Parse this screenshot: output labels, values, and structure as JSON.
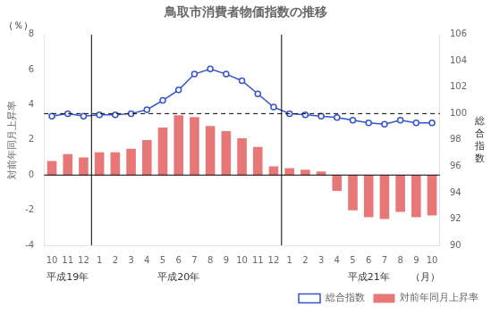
{
  "chart_data": {
    "type": "bar",
    "title": "鳥取市消費者物価指数の推移",
    "categories": [
      "10",
      "11",
      "12",
      "1",
      "2",
      "3",
      "4",
      "5",
      "6",
      "7",
      "8",
      "9",
      "10",
      "11",
      "12",
      "1",
      "2",
      "3",
      "4",
      "5",
      "6",
      "7",
      "8",
      "9",
      "10"
    ],
    "series": [
      {
        "name": "対前年同月上昇率",
        "type": "bar",
        "axis": "y",
        "color": "#e87878",
        "values": [
          0.8,
          1.2,
          1.0,
          1.3,
          1.3,
          1.5,
          2.0,
          2.7,
          3.4,
          3.3,
          2.8,
          2.5,
          2.1,
          1.6,
          0.5,
          0.4,
          0.3,
          0.2,
          -0.9,
          -2.0,
          -2.4,
          -2.5,
          -2.1,
          -2.4,
          -2.3
        ]
      },
      {
        "name": "総合指数",
        "type": "line",
        "axis": "y2",
        "color": "#3355cc",
        "marker": "circle",
        "values": [
          99.8,
          100.0,
          99.8,
          99.9,
          99.9,
          100.0,
          100.3,
          101.0,
          101.8,
          103.0,
          103.4,
          103.0,
          102.5,
          101.5,
          100.5,
          100.0,
          99.9,
          99.8,
          99.7,
          99.5,
          99.3,
          99.2,
          99.5,
          99.3,
          99.3
        ]
      }
    ],
    "xlabel": "（月）",
    "ylabel": "対前年同月上昇率",
    "ylabel_unit": "（％）",
    "y2label": "総\n合\n指\n数",
    "ylim": [
      -4,
      8
    ],
    "yticks": [
      -4,
      -2,
      0,
      2,
      4,
      6,
      8
    ],
    "y2lim": [
      90,
      106
    ],
    "y2ticks": [
      90,
      92,
      94,
      96,
      98,
      100,
      102,
      104,
      106
    ],
    "hlines": [
      {
        "y": 0,
        "axis": "y",
        "line_style": "solid"
      },
      {
        "y": 100,
        "axis": "y2",
        "line_style": "dashed"
      }
    ],
    "vlines": [
      2.5,
      14.5
    ],
    "year_labels": [
      {
        "text": "平成19年",
        "x": 1
      },
      {
        "text": "平成20年",
        "x": 8
      },
      {
        "text": "平成21年",
        "x": 20
      }
    ],
    "grid": false,
    "legend": "lower right"
  }
}
